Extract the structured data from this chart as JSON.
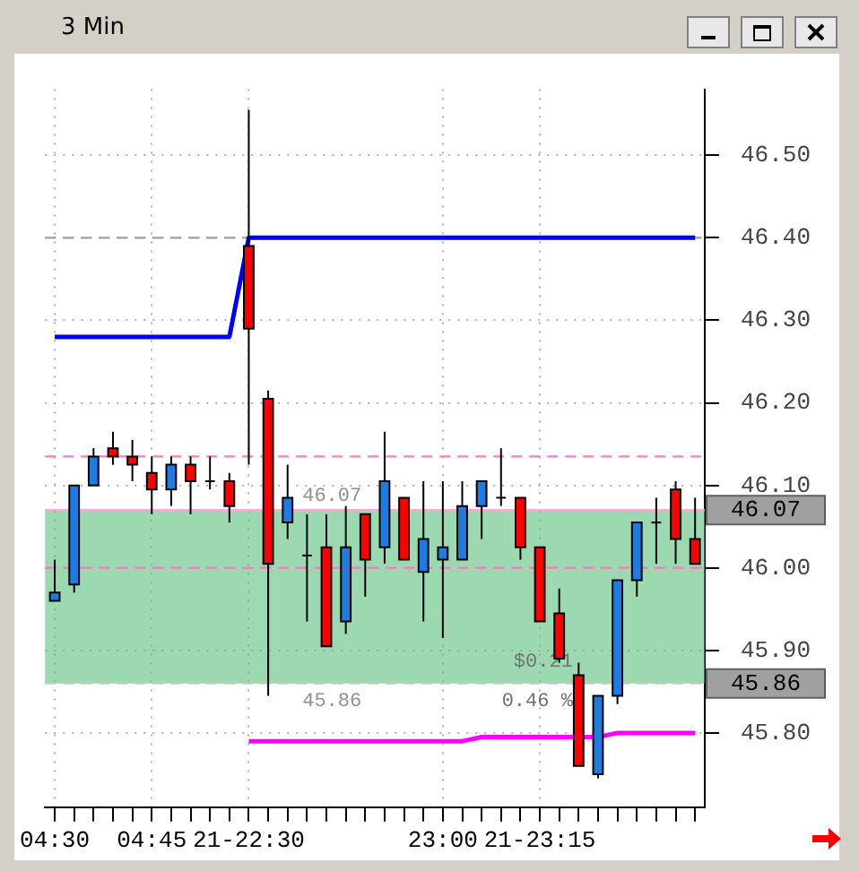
{
  "chart_data": {
    "type": "candlestick",
    "title": "3 Min",
    "categories": [
      "04:30",
      null,
      null,
      null,
      null,
      "04:45",
      null,
      null,
      null,
      null,
      "21-22:30",
      null,
      null,
      null,
      null,
      null,
      null,
      null,
      null,
      null,
      "23:00",
      null,
      null,
      null,
      null,
      "21-23:15",
      null,
      null,
      null,
      null,
      null,
      null,
      null,
      null
    ],
    "ohlc": [
      [
        45.96,
        46.01,
        45.96,
        45.97
      ],
      [
        45.98,
        46.1,
        45.97,
        46.1
      ],
      [
        46.1,
        46.145,
        46.1,
        46.135
      ],
      [
        46.145,
        46.165,
        46.125,
        46.135
      ],
      [
        46.135,
        46.155,
        46.105,
        46.125
      ],
      [
        46.115,
        46.135,
        46.065,
        46.095
      ],
      [
        46.095,
        46.135,
        46.075,
        46.125
      ],
      [
        46.125,
        46.135,
        46.065,
        46.105
      ],
      [
        46.105,
        46.135,
        46.095,
        46.105
      ],
      [
        46.105,
        46.115,
        46.055,
        46.075
      ],
      [
        46.39,
        46.555,
        46.125,
        46.29
      ],
      [
        46.205,
        46.215,
        45.845,
        46.005
      ],
      [
        46.055,
        46.125,
        46.035,
        46.085
      ],
      [
        46.015,
        46.065,
        45.935,
        46.015
      ],
      [
        46.025,
        46.065,
        45.905,
        45.905
      ],
      [
        45.935,
        46.075,
        45.92,
        46.025
      ],
      [
        46.065,
        46.065,
        45.965,
        46.01
      ],
      [
        46.025,
        46.165,
        46.005,
        46.105
      ],
      [
        46.085,
        46.085,
        46.01,
        46.01
      ],
      [
        45.995,
        46.105,
        45.935,
        46.035
      ],
      [
        46.01,
        46.105,
        45.915,
        46.025
      ],
      [
        46.01,
        46.105,
        46.01,
        46.075
      ],
      [
        46.075,
        46.105,
        46.035,
        46.105
      ],
      [
        46.085,
        46.145,
        46.075,
        46.085
      ],
      [
        46.085,
        46.085,
        46.01,
        46.025
      ],
      [
        46.025,
        46.025,
        45.935,
        45.935
      ],
      [
        45.945,
        45.975,
        45.885,
        45.89
      ],
      [
        45.87,
        45.885,
        45.76,
        45.76
      ],
      [
        45.75,
        45.845,
        45.745,
        45.845
      ],
      [
        45.845,
        45.985,
        45.835,
        45.985
      ],
      [
        45.985,
        46.055,
        45.965,
        46.055
      ],
      [
        46.055,
        46.085,
        46.005,
        46.055
      ],
      [
        46.095,
        46.105,
        46.005,
        46.035
      ],
      [
        46.035,
        46.085,
        46.005,
        46.005
      ]
    ],
    "colors": [
      "#1e7be0",
      "#1e7be0",
      "#1e7be0",
      "#ff0000",
      "#ff0000",
      "#ff0000",
      "#1e7be0",
      "#ff0000",
      "#000000",
      "#ff0000",
      "#ff0000",
      "#ff0000",
      "#1e7be0",
      "#000000",
      "#ff0000",
      "#1e7be0",
      "#ff0000",
      "#1e7be0",
      "#ff0000",
      "#1e7be0",
      "#1e7be0",
      "#1e7be0",
      "#1e7be0",
      "#000000",
      "#ff0000",
      "#ff0000",
      "#ff0000",
      "#ff0000",
      "#1e7be0",
      "#1e7be0",
      "#1e7be0",
      "#000000",
      "#ff0000",
      "#ff0000"
    ],
    "series": [
      {
        "type": "line",
        "color": "#0000ff",
        "values": [
          46.28,
          46.28,
          46.28,
          46.28,
          46.28,
          46.28,
          46.28,
          46.28,
          46.28,
          46.28,
          46.4,
          46.4,
          46.4,
          46.4,
          46.4,
          46.4,
          46.4,
          46.4,
          46.4,
          46.4,
          46.4,
          46.4,
          46.4,
          46.4,
          46.4,
          46.4,
          46.4,
          46.4,
          46.4,
          46.4,
          46.4,
          46.4,
          46.4,
          46.4
        ]
      },
      {
        "type": "line",
        "color": "#ff00ff",
        "values": [
          null,
          null,
          null,
          null,
          null,
          null,
          null,
          null,
          null,
          null,
          45.79,
          45.79,
          45.79,
          45.79,
          45.79,
          45.79,
          45.79,
          45.79,
          45.79,
          45.79,
          45.79,
          45.79,
          45.795,
          45.795,
          45.795,
          45.795,
          45.795,
          45.795,
          45.795,
          45.8,
          45.8,
          45.8,
          45.8,
          45.8
        ]
      }
    ],
    "ylim": [
      45.71,
      46.58
    ],
    "yticks": [
      {
        "value": 45.8,
        "label": "45.80"
      },
      {
        "value": 45.9,
        "label": "45.90"
      },
      {
        "value": 46.0,
        "label": "46.00"
      },
      {
        "value": 46.1,
        "label": "46.10"
      },
      {
        "value": 46.2,
        "label": "46.20"
      },
      {
        "value": 46.3,
        "label": "46.30"
      },
      {
        "value": 46.4,
        "label": "46.40"
      },
      {
        "value": 46.5,
        "label": "46.50"
      }
    ],
    "grid": true,
    "ref_lines": [
      {
        "axis": "y",
        "value": 46.4,
        "color": "#a0a0a0",
        "line_style": "dashed"
      },
      {
        "axis": "y",
        "value": 46.135,
        "color": "#f080c0",
        "line_style": "dashed"
      },
      {
        "axis": "y",
        "value": 46.0,
        "color": "#f080c0",
        "line_style": "dashed"
      },
      {
        "axis": "y",
        "value": 46.07,
        "color": "#ffa8d8",
        "label": "46.07"
      },
      {
        "axis": "y",
        "value": 45.86,
        "color": "#c8c8c8",
        "line_style": "dashed",
        "label": "45.86"
      }
    ],
    "bands": [
      {
        "axis": "y",
        "from": 45.86,
        "to": 46.07,
        "color": "#5cc07c"
      }
    ],
    "annotations": [
      {
        "text": "46.07",
        "y": 46.07
      },
      {
        "text": "45.86",
        "y": 45.86
      },
      "$0.21",
      "0.46 %"
    ]
  }
}
